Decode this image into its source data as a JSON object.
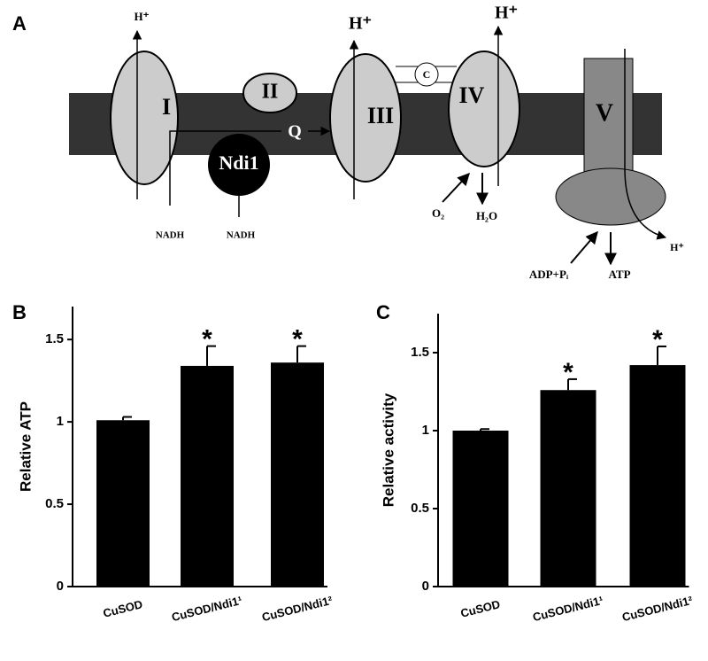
{
  "panel_labels": [
    "A",
    "B",
    "C"
  ],
  "diagram": {
    "complexes": [
      "I",
      "II",
      "III",
      "IV",
      "V"
    ],
    "cytochrome_c": "C",
    "ndi1": "Ndi1",
    "quinone": "Q",
    "protons": [
      "H⁺",
      "H⁺",
      "H⁺",
      "H⁺"
    ],
    "nadh": [
      "NADH",
      "NADH"
    ],
    "oxygen": "O₂",
    "water": "H₂O",
    "adp": "ADP+Pᵢ",
    "atp": "ATP"
  },
  "chart_data": [
    {
      "type": "bar",
      "ylabel": "Relative ATP",
      "categories": [
        "CuSOD",
        "CuSOD/Ndi1¹",
        "CuSOD/Ndi1²"
      ],
      "values": [
        1.01,
        1.34,
        1.36
      ],
      "errors": [
        0.02,
        0.12,
        0.1
      ],
      "significance": [
        null,
        "*",
        "*"
      ],
      "color": "#000000",
      "ylim": [
        0,
        1.7
      ],
      "yticks": [
        0,
        0.5,
        1,
        1.5
      ]
    },
    {
      "type": "bar",
      "ylabel": "Relative activity",
      "categories": [
        "CuSOD",
        "CuSOD/Ndi1¹",
        "CuSOD/Ndi1²"
      ],
      "values": [
        1.0,
        1.26,
        1.42
      ],
      "errors": [
        0.01,
        0.07,
        0.12
      ],
      "significance": [
        null,
        "*",
        "*"
      ],
      "color": "#000000",
      "ylim": [
        0,
        1.75
      ],
      "yticks": [
        0,
        0.5,
        1,
        1.5
      ]
    }
  ]
}
